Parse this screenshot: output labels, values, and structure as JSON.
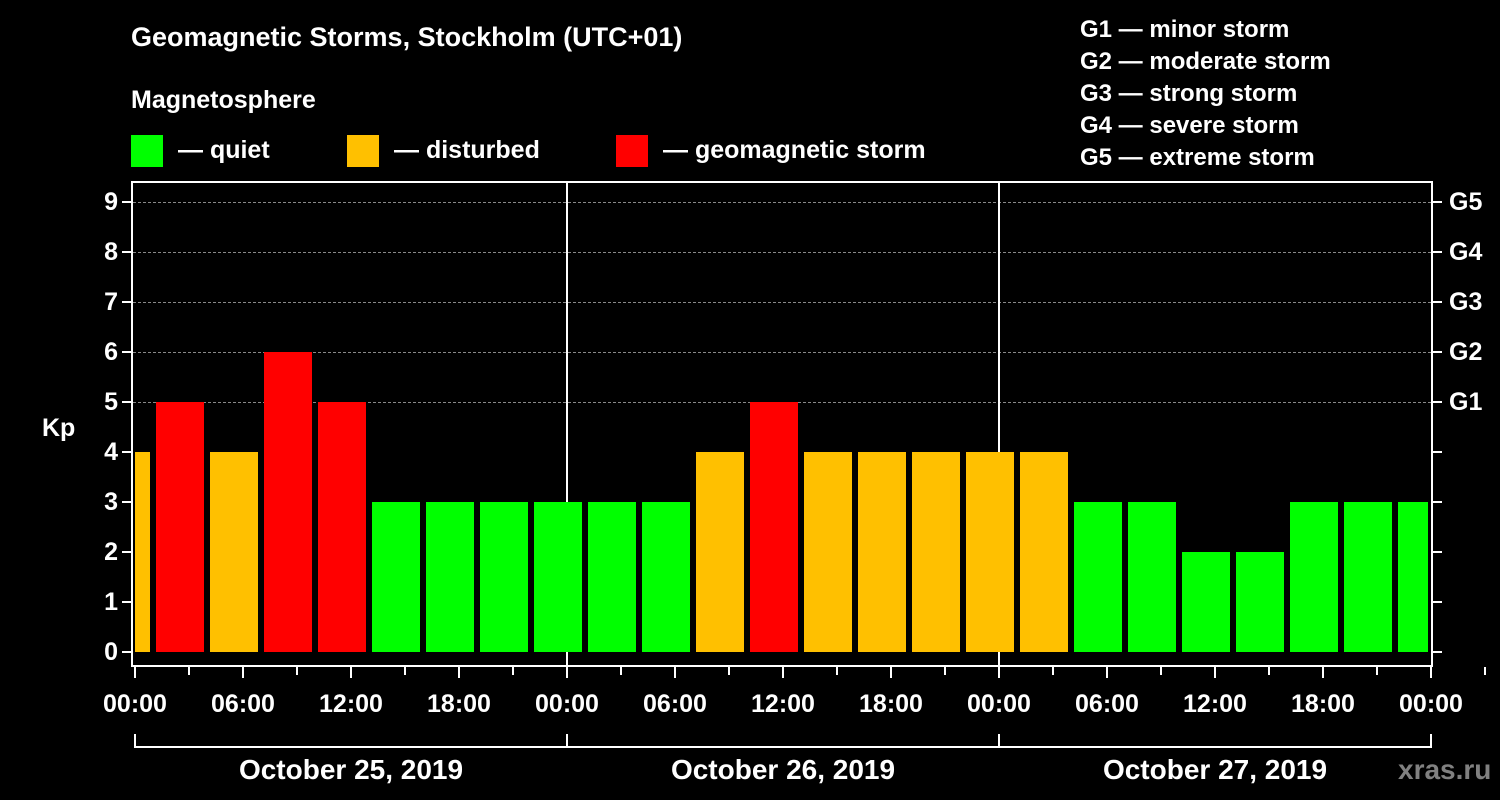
{
  "header": {
    "title": "Geomagnetic Storms, Stockholm (UTC+01)",
    "subtitle": "Magnetosphere"
  },
  "legend": [
    {
      "label": "— quiet",
      "color": "#00ff00"
    },
    {
      "label": "— disturbed",
      "color": "#ffc000"
    },
    {
      "label": "— geomagnetic storm",
      "color": "#ff0000"
    }
  ],
  "g_scale": [
    "G1 — minor storm",
    "G2 — moderate storm",
    "G3 — strong storm",
    "G4 — severe storm",
    "G5 — extreme storm"
  ],
  "axes": {
    "ylabel": "Kp",
    "y_ticks": [
      "0",
      "1",
      "2",
      "3",
      "4",
      "5",
      "6",
      "7",
      "8",
      "9"
    ],
    "right_ticks": [
      "G1",
      "G2",
      "G3",
      "G4",
      "G5"
    ],
    "x_ticks": [
      "00:00",
      "06:00",
      "12:00",
      "18:00",
      "00:00",
      "06:00",
      "12:00",
      "18:00",
      "00:00",
      "06:00",
      "12:00",
      "18:00",
      "00:00"
    ],
    "dates": [
      "October 25, 2019",
      "October 26, 2019",
      "October 27, 2019"
    ]
  },
  "watermark": "xras.ru",
  "colors": {
    "quiet": "#00ff00",
    "disturbed": "#ffc000",
    "storm": "#ff0000"
  },
  "chart_data": {
    "type": "bar",
    "title": "Geomagnetic Storms, Stockholm (UTC+01)",
    "xlabel": "",
    "ylabel": "Kp",
    "ylim": [
      0,
      9
    ],
    "grid": "dashed horizontal at Kp 5-9",
    "legend_position": "top",
    "categories": [
      "Oct 24 22:00-01:00 (partial)",
      "Oct 25 01:00",
      "Oct 25 04:00",
      "Oct 25 07:00",
      "Oct 25 10:00",
      "Oct 25 13:00",
      "Oct 25 16:00",
      "Oct 25 19:00",
      "Oct 25 22:00",
      "Oct 26 01:00",
      "Oct 26 04:00",
      "Oct 26 07:00",
      "Oct 26 10:00",
      "Oct 26 13:00",
      "Oct 26 16:00",
      "Oct 26 19:00",
      "Oct 26 22:00",
      "Oct 27 01:00",
      "Oct 27 04:00",
      "Oct 27 07:00",
      "Oct 27 10:00",
      "Oct 27 13:00",
      "Oct 27 16:00",
      "Oct 27 19:00",
      "Oct 27 22:00 (partial)"
    ],
    "values": [
      4,
      5,
      4,
      6,
      5,
      3,
      3,
      3,
      3,
      3,
      3,
      4,
      5,
      4,
      4,
      4,
      4,
      4,
      3,
      3,
      2,
      2,
      3,
      3,
      3
    ],
    "status": [
      "disturbed",
      "storm",
      "disturbed",
      "storm",
      "storm",
      "quiet",
      "quiet",
      "quiet",
      "quiet",
      "quiet",
      "quiet",
      "disturbed",
      "storm",
      "disturbed",
      "disturbed",
      "disturbed",
      "disturbed",
      "disturbed",
      "quiet",
      "quiet",
      "quiet",
      "quiet",
      "quiet",
      "quiet",
      "quiet"
    ],
    "right_axis": {
      "G1": 5,
      "G2": 6,
      "G3": 7,
      "G4": 8,
      "G5": 9
    }
  }
}
